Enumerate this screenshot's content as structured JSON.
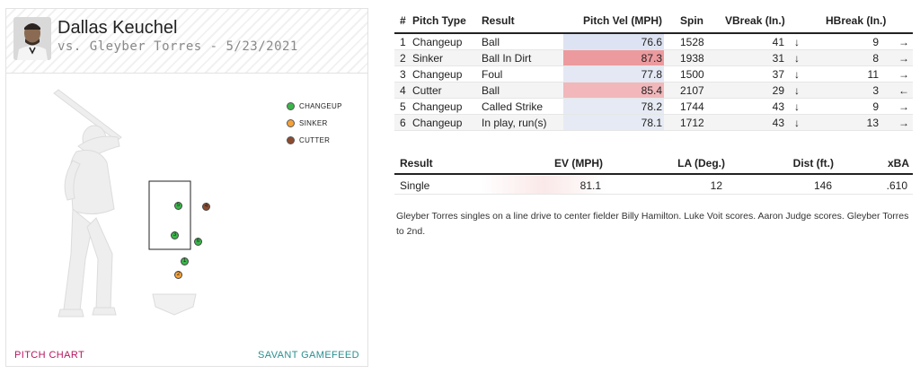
{
  "player": {
    "name": "Dallas Keuchel",
    "matchup": "vs. Gleyber Torres - 5/23/2021"
  },
  "legend": [
    {
      "label": "CHANGEUP",
      "color": "#3bb54a"
    },
    {
      "label": "SINKER",
      "color": "#f5a23a"
    },
    {
      "label": "CUTTER",
      "color": "#8c4a2f"
    }
  ],
  "pitch_markers": [
    {
      "num": "1",
      "type": "CHANGEUP",
      "color": "#3bb54a"
    },
    {
      "num": "2",
      "type": "SINKER",
      "color": "#f5a23a"
    },
    {
      "num": "3",
      "type": "CHANGEUP",
      "color": "#3bb54a"
    },
    {
      "num": "4",
      "type": "CUTTER",
      "color": "#8c4a2f"
    },
    {
      "num": "5",
      "type": "CHANGEUP",
      "color": "#3bb54a"
    },
    {
      "num": "6",
      "type": "CHANGEUP",
      "color": "#3bb54a"
    }
  ],
  "footer": {
    "left": "PITCH CHART",
    "right": "SAVANT GAMEFEED"
  },
  "pitch_table": {
    "headers": {
      "num": "#",
      "pitch_type": "Pitch Type",
      "result": "Result",
      "pitch_vel": "Pitch Vel (MPH)",
      "spin": "Spin",
      "vbreak": "VBreak (In.)",
      "hbreak": "HBreak (In.)"
    },
    "rows": [
      {
        "num": "1",
        "type": "Changeup",
        "result": "Ball",
        "vel": "76.6",
        "vel_color": "#dde3f2",
        "spin": "1528",
        "vbreak": "41",
        "varrow": "↓",
        "hbreak": "9",
        "harrow": "→"
      },
      {
        "num": "2",
        "type": "Sinker",
        "result": "Ball In Dirt",
        "vel": "87.3",
        "vel_color": "#ec9a9e",
        "spin": "1938",
        "vbreak": "31",
        "varrow": "↓",
        "hbreak": "8",
        "harrow": "→"
      },
      {
        "num": "3",
        "type": "Changeup",
        "result": "Foul",
        "vel": "77.8",
        "vel_color": "#e4e8f4",
        "spin": "1500",
        "vbreak": "37",
        "varrow": "↓",
        "hbreak": "11",
        "harrow": "→"
      },
      {
        "num": "4",
        "type": "Cutter",
        "result": "Ball",
        "vel": "85.4",
        "vel_color": "#f1b7bb",
        "spin": "2107",
        "vbreak": "29",
        "varrow": "↓",
        "hbreak": "3",
        "harrow": "←"
      },
      {
        "num": "5",
        "type": "Changeup",
        "result": "Called Strike",
        "vel": "78.2",
        "vel_color": "#e6eaf4",
        "spin": "1744",
        "vbreak": "43",
        "varrow": "↓",
        "hbreak": "9",
        "harrow": "→"
      },
      {
        "num": "6",
        "type": "Changeup",
        "result": "In play, run(s)",
        "vel": "78.1",
        "vel_color": "#e6eaf4",
        "spin": "1712",
        "vbreak": "43",
        "varrow": "↓",
        "hbreak": "13",
        "harrow": "→"
      }
    ]
  },
  "result_table": {
    "headers": {
      "result": "Result",
      "ev": "EV (MPH)",
      "la": "LA (Deg.)",
      "dist": "Dist (ft.)",
      "xba": "xBA"
    },
    "row": {
      "result": "Single",
      "ev": "81.1",
      "la": "12",
      "dist": "146",
      "xba": ".610"
    }
  },
  "description": "Gleyber Torres singles on a line drive to center fielder Billy Hamilton. Luke Voit scores. Aaron Judge scores. Gleyber Torres to 2nd."
}
